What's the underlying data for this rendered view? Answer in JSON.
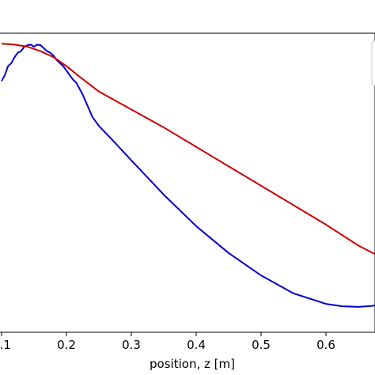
{
  "chart_data": {
    "type": "line",
    "title": "",
    "xlabel": "position, z [m]",
    "ylabel": "",
    "xlim": [
      0.1,
      0.69
    ],
    "ylim": [
      0,
      1
    ],
    "x_ticks": [
      {
        "value": 0.1,
        "label": "0.1"
      },
      {
        "value": 0.2,
        "label": "0.2"
      },
      {
        "value": 0.3,
        "label": "0.3"
      },
      {
        "value": 0.4,
        "label": "0.4"
      },
      {
        "value": 0.5,
        "label": "0.5"
      },
      {
        "value": 0.6,
        "label": "0.6"
      }
    ],
    "grid": false,
    "legend": {
      "placement": "top-right",
      "entries": []
    },
    "series": [
      {
        "color": "#0000cc",
        "points": [
          [
            0.1,
            0.84
          ],
          [
            0.105,
            0.86
          ],
          [
            0.11,
            0.89
          ],
          [
            0.115,
            0.9
          ],
          [
            0.12,
            0.92
          ],
          [
            0.125,
            0.935
          ],
          [
            0.13,
            0.94
          ],
          [
            0.135,
            0.955
          ],
          [
            0.14,
            0.96
          ],
          [
            0.145,
            0.962
          ],
          [
            0.15,
            0.955
          ],
          [
            0.155,
            0.962
          ],
          [
            0.16,
            0.96
          ],
          [
            0.165,
            0.95
          ],
          [
            0.17,
            0.94
          ],
          [
            0.175,
            0.935
          ],
          [
            0.18,
            0.925
          ],
          [
            0.185,
            0.91
          ],
          [
            0.19,
            0.9
          ],
          [
            0.195,
            0.89
          ],
          [
            0.2,
            0.875
          ],
          [
            0.205,
            0.86
          ],
          [
            0.21,
            0.845
          ],
          [
            0.215,
            0.835
          ],
          [
            0.22,
            0.815
          ],
          [
            0.225,
            0.795
          ],
          [
            0.23,
            0.77
          ],
          [
            0.235,
            0.745
          ],
          [
            0.24,
            0.72
          ],
          [
            0.25,
            0.69
          ],
          [
            0.27,
            0.645
          ],
          [
            0.3,
            0.575
          ],
          [
            0.35,
            0.46
          ],
          [
            0.4,
            0.355
          ],
          [
            0.45,
            0.265
          ],
          [
            0.5,
            0.19
          ],
          [
            0.55,
            0.13
          ],
          [
            0.6,
            0.095
          ],
          [
            0.625,
            0.087
          ],
          [
            0.65,
            0.085
          ],
          [
            0.67,
            0.088
          ],
          [
            0.69,
            0.095
          ]
        ]
      },
      {
        "color": "#cc0000",
        "points": [
          [
            0.1,
            0.965
          ],
          [
            0.12,
            0.962
          ],
          [
            0.14,
            0.955
          ],
          [
            0.16,
            0.94
          ],
          [
            0.18,
            0.92
          ],
          [
            0.2,
            0.89
          ],
          [
            0.22,
            0.855
          ],
          [
            0.25,
            0.805
          ],
          [
            0.3,
            0.745
          ],
          [
            0.35,
            0.685
          ],
          [
            0.4,
            0.62
          ],
          [
            0.45,
            0.555
          ],
          [
            0.5,
            0.49
          ],
          [
            0.55,
            0.425
          ],
          [
            0.6,
            0.36
          ],
          [
            0.65,
            0.29
          ],
          [
            0.69,
            0.245
          ]
        ]
      }
    ]
  }
}
